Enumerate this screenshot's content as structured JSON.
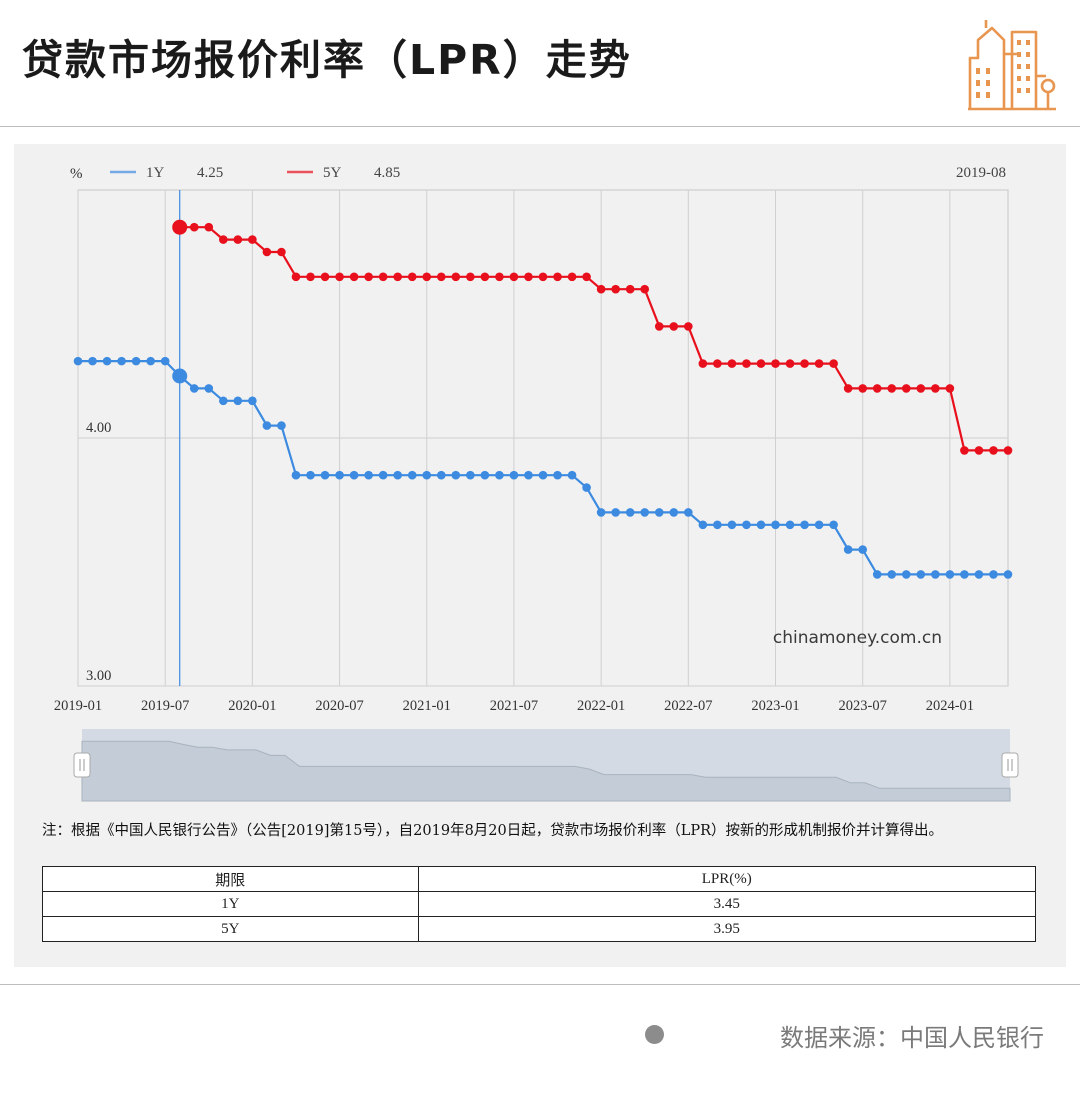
{
  "header": {
    "title": "贷款市场报价利率（LPR）走势"
  },
  "chart_data": {
    "type": "line",
    "x": [
      "2019-01",
      "2019-02",
      "2019-03",
      "2019-04",
      "2019-05",
      "2019-06",
      "2019-07",
      "2019-08",
      "2019-09",
      "2019-10",
      "2019-11",
      "2019-12",
      "2020-01",
      "2020-02",
      "2020-03",
      "2020-04",
      "2020-05",
      "2020-06",
      "2020-07",
      "2020-08",
      "2020-09",
      "2020-10",
      "2020-11",
      "2020-12",
      "2021-01",
      "2021-02",
      "2021-03",
      "2021-04",
      "2021-05",
      "2021-06",
      "2021-07",
      "2021-08",
      "2021-09",
      "2021-10",
      "2021-11",
      "2021-12",
      "2022-01",
      "2022-02",
      "2022-03",
      "2022-04",
      "2022-05",
      "2022-06",
      "2022-07",
      "2022-08",
      "2022-09",
      "2022-10",
      "2022-11",
      "2022-12",
      "2023-01",
      "2023-02",
      "2023-03",
      "2023-04",
      "2023-05",
      "2023-06",
      "2023-07",
      "2023-08",
      "2023-09",
      "2023-10",
      "2023-11",
      "2023-12",
      "2024-01",
      "2024-02",
      "2024-03",
      "2024-04",
      "2024-05"
    ],
    "x_tick_labels": [
      "2019-01",
      "2019-07",
      "2020-01",
      "2020-07",
      "2021-01",
      "2021-07",
      "2022-01",
      "2022-07",
      "2023-01",
      "2023-07",
      "2024-01"
    ],
    "y_unit": "%",
    "y_tick_labels": [
      "4.00",
      "3.00"
    ],
    "ylim": [
      3.0,
      5.0
    ],
    "series": [
      {
        "name": "1Y",
        "color": "#3d8be0",
        "values": [
          4.31,
          4.31,
          4.31,
          4.31,
          4.31,
          4.31,
          4.31,
          4.25,
          4.2,
          4.2,
          4.15,
          4.15,
          4.15,
          4.05,
          4.05,
          3.85,
          3.85,
          3.85,
          3.85,
          3.85,
          3.85,
          3.85,
          3.85,
          3.85,
          3.85,
          3.85,
          3.85,
          3.85,
          3.85,
          3.85,
          3.85,
          3.85,
          3.85,
          3.85,
          3.85,
          3.8,
          3.7,
          3.7,
          3.7,
          3.7,
          3.7,
          3.7,
          3.7,
          3.65,
          3.65,
          3.65,
          3.65,
          3.65,
          3.65,
          3.65,
          3.65,
          3.65,
          3.65,
          3.55,
          3.55,
          3.45,
          3.45,
          3.45,
          3.45,
          3.45,
          3.45,
          3.45,
          3.45,
          3.45,
          3.45
        ]
      },
      {
        "name": "5Y",
        "color": "#e8101c",
        "values": [
          null,
          null,
          null,
          null,
          null,
          null,
          null,
          4.85,
          4.85,
          4.85,
          4.8,
          4.8,
          4.8,
          4.75,
          4.75,
          4.65,
          4.65,
          4.65,
          4.65,
          4.65,
          4.65,
          4.65,
          4.65,
          4.65,
          4.65,
          4.65,
          4.65,
          4.65,
          4.65,
          4.65,
          4.65,
          4.65,
          4.65,
          4.65,
          4.65,
          4.65,
          4.6,
          4.6,
          4.6,
          4.6,
          4.45,
          4.45,
          4.45,
          4.3,
          4.3,
          4.3,
          4.3,
          4.3,
          4.3,
          4.3,
          4.3,
          4.3,
          4.3,
          4.2,
          4.2,
          4.2,
          4.2,
          4.2,
          4.2,
          4.2,
          4.2,
          3.95,
          3.95,
          3.95,
          3.95
        ]
      }
    ],
    "tooltip": {
      "date": "2019-08",
      "values": [
        "4.25",
        "4.85"
      ]
    },
    "watermark": "chinamoney.com.cn",
    "grid": true
  },
  "note": "注：根据《中国人民银行公告》（公告[2019]第15号），自2019年8月20日起，贷款市场报价利率（LPR）按新的形成机制报价并计算得出。",
  "table": {
    "headers": [
      "期限",
      "LPR(%)"
    ],
    "rows": [
      [
        "1Y",
        "3.45"
      ],
      [
        "5Y",
        "3.95"
      ]
    ]
  },
  "footer": {
    "source": "数据来源：中国人民银行"
  }
}
